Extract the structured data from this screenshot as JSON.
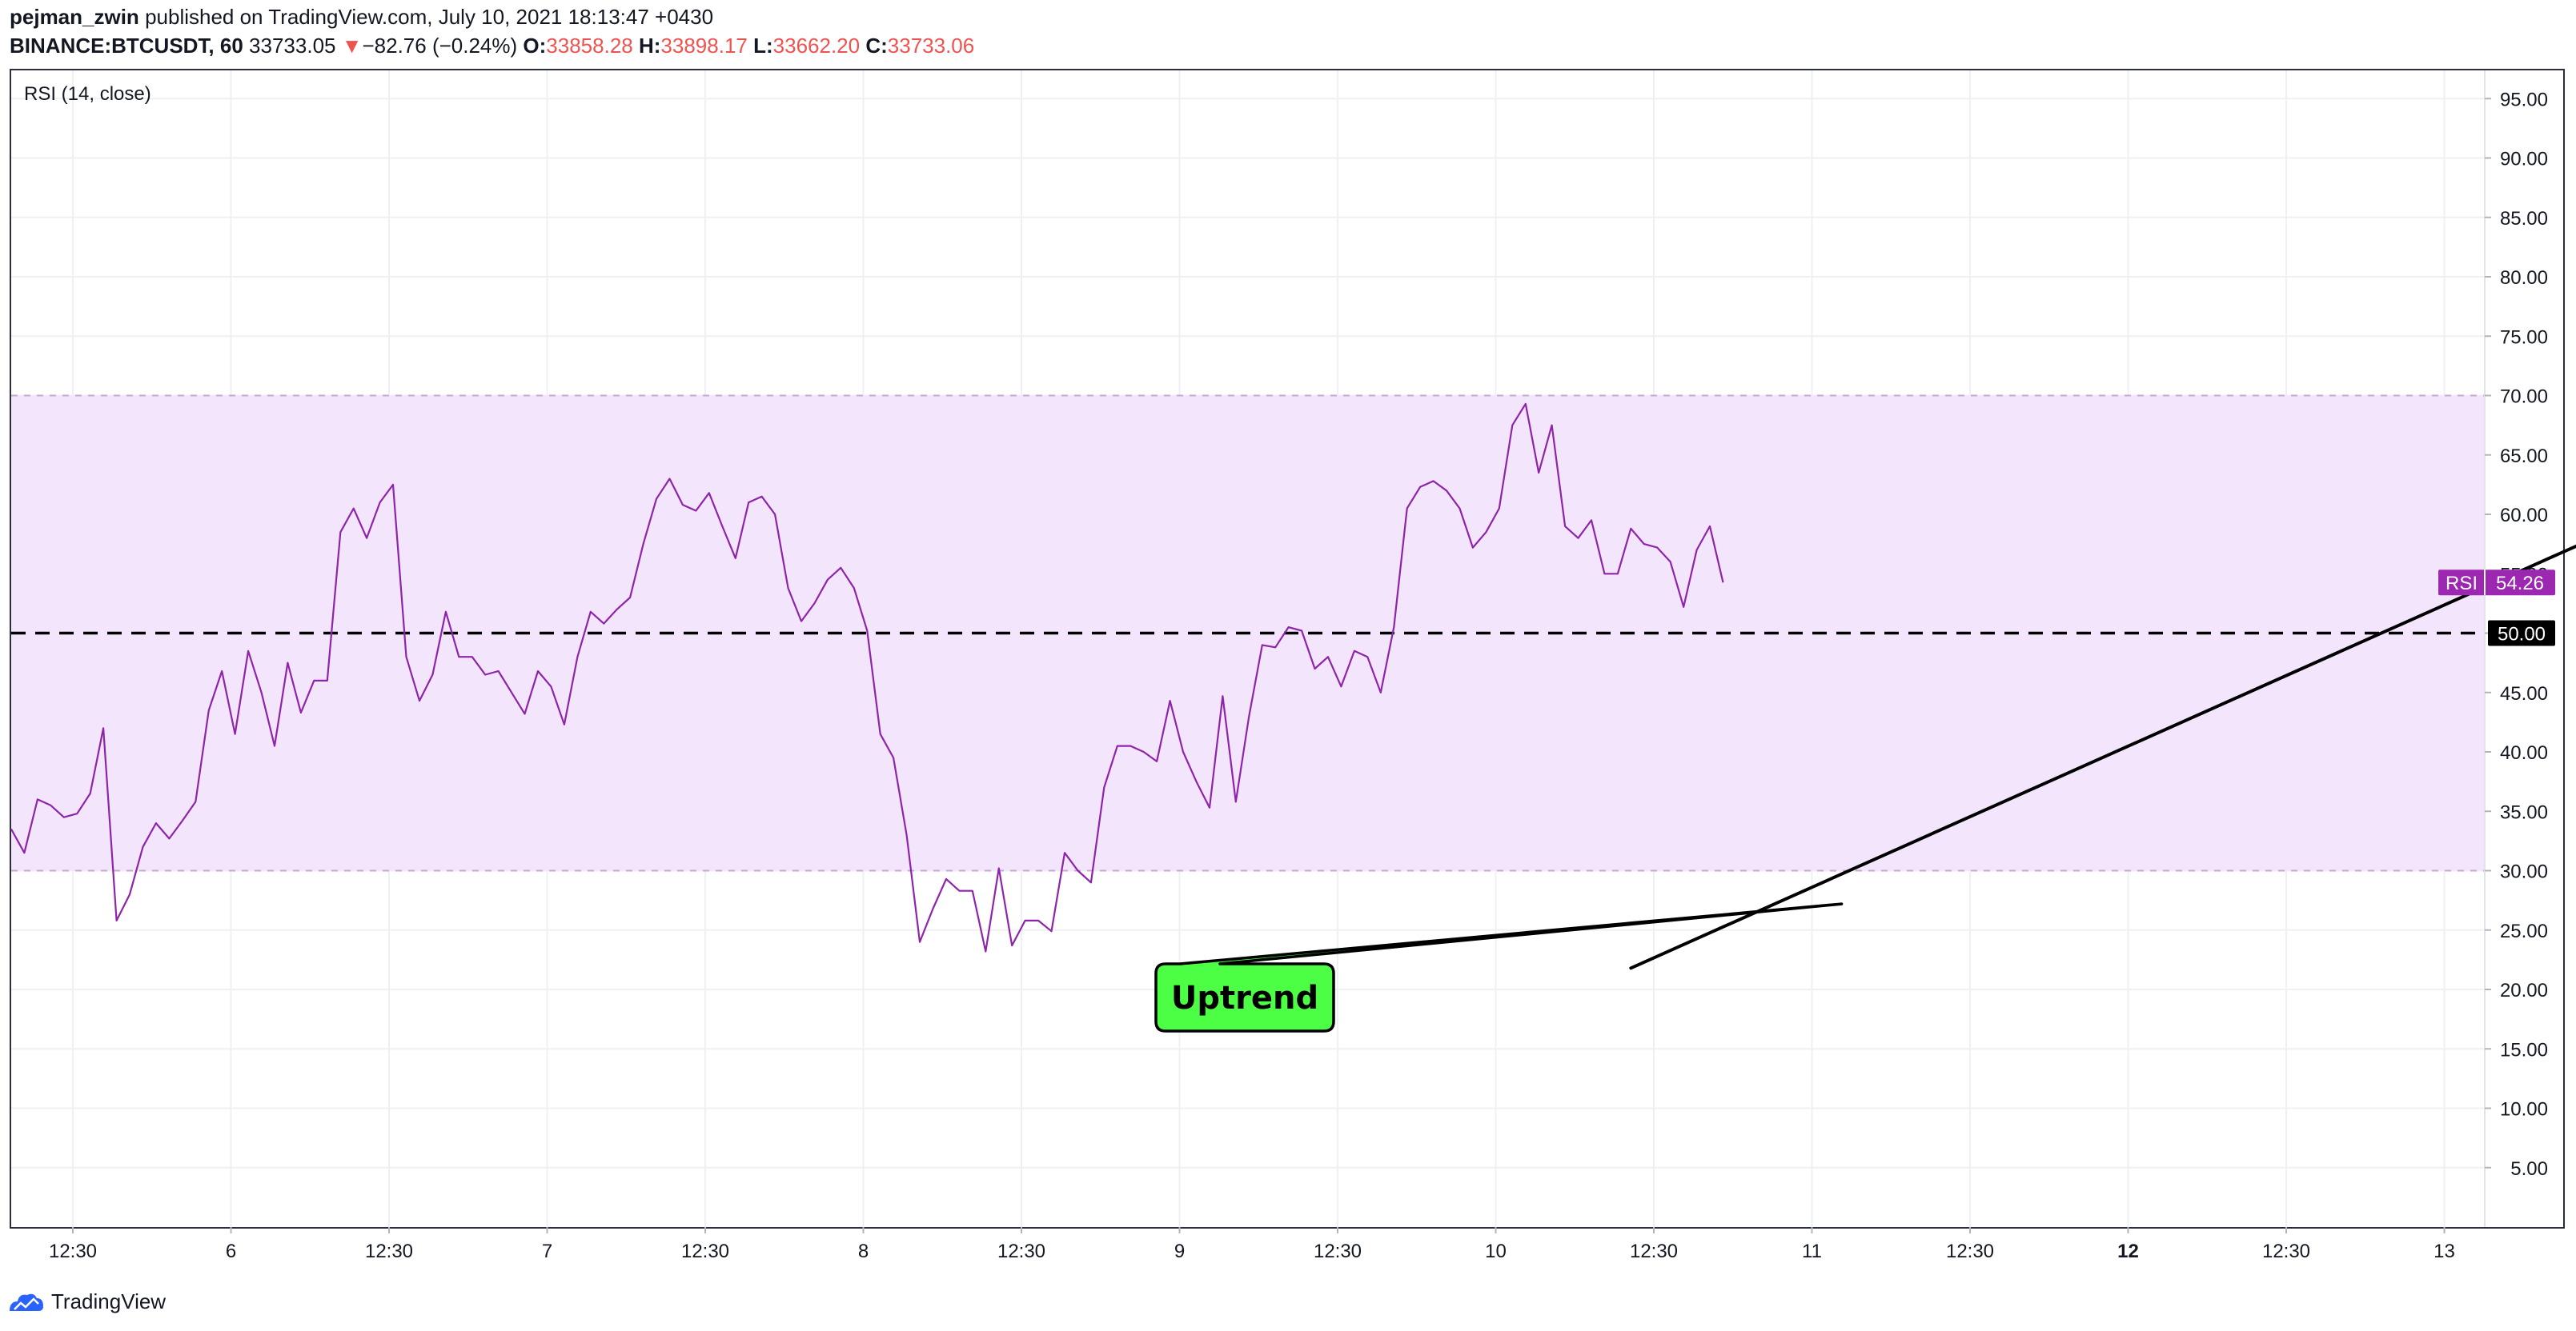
{
  "header": {
    "author": "pejman_zwin",
    "published_text": "published on TradingView.com, July 10, 2021 18:13:47 +0430",
    "symbol": "BINANCE:BTCUSDT, 60",
    "price": "33733.05",
    "change_arrow": "▼",
    "change": "−82.76 (−0.24%)",
    "o_label": "O:",
    "o_value": "33858.28",
    "h_label": "H:",
    "h_value": "33898.17",
    "l_label": "L:",
    "l_value": "33662.20",
    "c_label": "C:",
    "c_value": "33733.06"
  },
  "indicator_label": "RSI (14, close)",
  "footer": {
    "brand": "TradingView"
  },
  "colors": {
    "rsi_line": "#8e24aa",
    "band_fill": "#f3e5fc",
    "band_line": "#c9a6d6",
    "midline": "#000000",
    "callout_fill": "#4cff44",
    "rsi_badge": "#9c27b0"
  },
  "chart_data": {
    "type": "line",
    "ylim": [
      0,
      97.5
    ],
    "y_ticks": [
      "5.00",
      "10.00",
      "15.00",
      "20.00",
      "25.00",
      "30.00",
      "35.00",
      "40.00",
      "45.00",
      "50.00",
      "55.00",
      "60.00",
      "65.00",
      "70.00",
      "75.00",
      "80.00",
      "85.00",
      "90.00",
      "95.00"
    ],
    "y_tick_values": [
      5,
      10,
      15,
      20,
      25,
      30,
      35,
      40,
      45,
      50,
      55,
      60,
      65,
      70,
      75,
      80,
      85,
      90,
      95
    ],
    "x_tick_labels": [
      "12:30",
      "6",
      "12:30",
      "7",
      "12:30",
      "8",
      "12:30",
      "9",
      "12:30",
      "10",
      "12:30",
      "11",
      "12:30",
      "12",
      "12:30",
      "13"
    ],
    "x_tick_bold": [
      "12"
    ],
    "band": [
      30,
      70
    ],
    "midline": 50,
    "last_value_label": "54.26",
    "last_value_name": "RSI",
    "midline_label": "50.00",
    "series": [
      {
        "values": [
          33.5,
          31.5,
          36,
          35.5,
          34.5,
          34.8,
          36.5,
          42,
          25.8,
          28,
          32,
          34,
          32.7,
          34.2,
          35.8,
          43.5,
          46.8,
          41.5,
          48.5,
          45,
          40.5,
          47.5,
          43.3,
          46,
          46,
          58.5,
          60.5,
          58,
          61,
          62.5,
          48,
          44.3,
          46.5,
          51.8,
          48,
          48,
          46.5,
          46.8,
          45,
          43.2,
          46.8,
          45.5,
          42.3,
          48,
          51.8,
          50.8,
          52,
          53,
          57.5,
          61.3,
          63,
          60.8,
          60.3,
          61.8,
          59,
          56.3,
          61,
          61.5,
          60,
          53.8,
          51,
          52.5,
          54.5,
          55.5,
          53.8,
          50.2,
          41.5,
          39.5,
          33,
          24,
          26.8,
          29.3,
          28.3,
          28.3,
          23.2,
          30.2,
          23.7,
          25.8,
          25.8,
          24.9,
          31.5,
          30,
          29,
          37,
          40.5,
          40.5,
          40,
          39.2,
          44.3,
          40,
          37.5,
          35.3,
          44.7,
          35.8,
          43,
          49,
          48.8,
          50.5,
          50.2,
          47,
          48,
          45.5,
          48.5,
          48,
          45,
          50.5,
          60.5,
          62.3,
          62.8,
          62,
          60.5,
          57.2,
          58.5,
          60.5,
          67.5,
          69.3,
          63.5,
          67.5,
          59,
          58,
          59.5,
          55,
          55,
          58.8,
          57.5,
          57.2,
          56,
          52.2,
          57,
          59,
          54.26
        ]
      }
    ],
    "trendline": {
      "from": {
        "bar": 123,
        "rsi": 21.8
      },
      "to": {
        "bar": 219,
        "rsi": 69.3
      }
    },
    "annotations": [
      {
        "text": "Uptrend",
        "anchor_bar": 139,
        "anchor_rsi": 27.2
      }
    ]
  }
}
